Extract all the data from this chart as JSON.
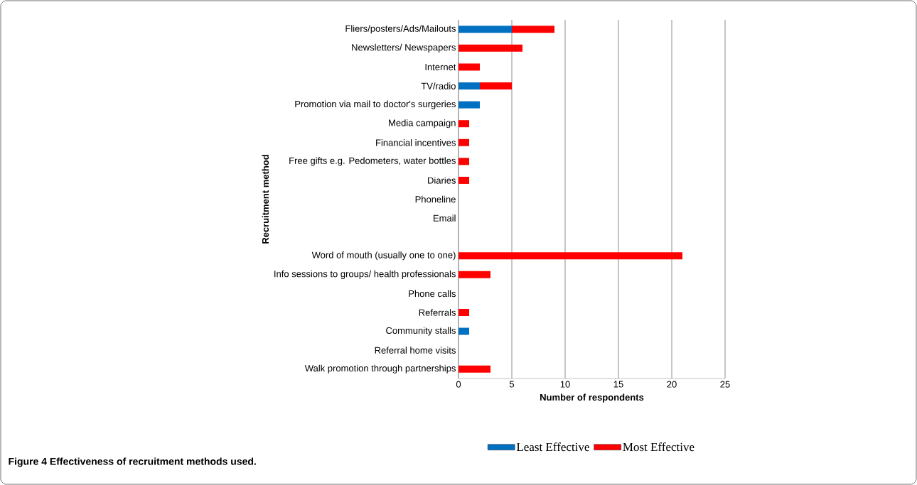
{
  "chart_data": {
    "type": "bar",
    "orientation": "horizontal",
    "stacked": true,
    "categories": [
      "Fliers/posters/Ads/Mailouts",
      "Newsletters/ Newspapers",
      "Internet",
      "TV/radio",
      "Promotion via mail to doctor's surgeries",
      "Media campaign",
      "Financial incentives",
      "Free gifts e.g. Pedometers, water bottles",
      "Diaries",
      "Phoneline",
      "Email",
      null,
      "Word of mouth (usually one to one)",
      "Info sessions to groups/ health professionals",
      "Phone calls",
      "Referrals",
      "Community stalls",
      "Referral home visits",
      "Walk promotion through partnerships"
    ],
    "series": [
      {
        "name": "Least Effective",
        "color": "#0070c0",
        "values": [
          5,
          0,
          0,
          2,
          2,
          0,
          0,
          0,
          0,
          0,
          0,
          0,
          0,
          0,
          0,
          0,
          1,
          0,
          0
        ]
      },
      {
        "name": "Most Effective",
        "color": "#ff0000",
        "values": [
          4,
          6,
          2,
          3,
          0,
          1,
          1,
          1,
          1,
          0,
          0,
          0,
          21,
          3,
          0,
          1,
          0,
          0,
          3
        ]
      }
    ],
    "xlim": [
      0,
      25
    ],
    "xticks": [
      0,
      5,
      10,
      15,
      20,
      25
    ],
    "xlabel": "Number of respondents",
    "ylabel": "Recruitment method",
    "grid": "x",
    "legend": "bottom",
    "annotations": [
      "Figure 4 Effectiveness of recruitment methods used."
    ]
  }
}
